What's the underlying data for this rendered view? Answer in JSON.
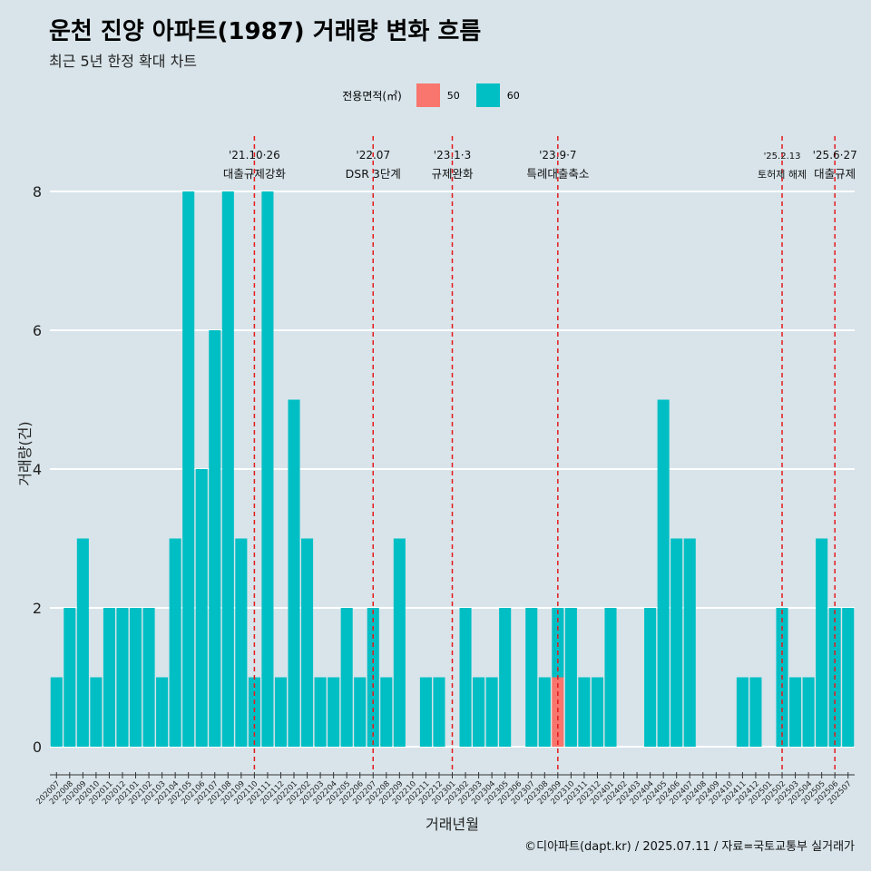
{
  "title": "운천 진양 아파트(1987) 거래량 변화 흐름",
  "subtitle": "최근 5년 한정 확대 차트",
  "footer": "©디아파트(dapt.kr) / 2025.07.11 / 자료=국토교통부 실거래가",
  "legend": {
    "title": "전용면적(㎡)",
    "items": [
      {
        "label": "50",
        "color": "#f8766d"
      },
      {
        "label": "60",
        "color": "#00bfc4"
      }
    ]
  },
  "chart_data": {
    "type": "bar",
    "stacked": true,
    "xlabel": "거래년월",
    "ylabel": "거래량(건)",
    "ylim": [
      0,
      8.6
    ],
    "yticks": [
      0,
      2,
      4,
      6,
      8
    ],
    "grid": true,
    "legend_position": "top",
    "categories": [
      "202007",
      "202008",
      "202009",
      "202010",
      "202011",
      "202012",
      "202101",
      "202102",
      "202103",
      "202104",
      "202105",
      "202106",
      "202107",
      "202108",
      "202109",
      "202110",
      "202111",
      "202112",
      "202201",
      "202202",
      "202203",
      "202204",
      "202205",
      "202206",
      "202207",
      "202208",
      "202209",
      "202210",
      "202211",
      "202212",
      "202301",
      "202302",
      "202303",
      "202304",
      "202305",
      "202306",
      "202307",
      "202308",
      "202309",
      "202310",
      "202311",
      "202312",
      "202401",
      "202402",
      "202403",
      "202404",
      "202405",
      "202406",
      "202407",
      "202408",
      "202409",
      "202410",
      "202411",
      "202412",
      "202501",
      "202502",
      "202503",
      "202504",
      "202505",
      "202506",
      "202507"
    ],
    "series": [
      {
        "name": "50",
        "color": "#f8766d",
        "values": [
          0,
          0,
          0,
          0,
          0,
          0,
          0,
          0,
          0,
          0,
          0,
          0,
          0,
          0,
          0,
          0,
          0,
          0,
          0,
          0,
          0,
          0,
          0,
          0,
          0,
          0,
          0,
          0,
          0,
          0,
          0,
          0,
          0,
          0,
          0,
          0,
          0,
          0,
          1,
          0,
          0,
          0,
          0,
          0,
          0,
          0,
          0,
          0,
          0,
          0,
          0,
          0,
          0,
          0,
          0,
          0,
          0,
          0,
          0,
          0,
          0
        ]
      },
      {
        "name": "60",
        "color": "#00bfc4",
        "values": [
          1,
          2,
          3,
          1,
          2,
          2,
          2,
          2,
          1,
          3,
          8,
          4,
          6,
          8,
          3,
          1,
          8,
          1,
          5,
          3,
          1,
          1,
          2,
          1,
          2,
          1,
          3,
          0,
          1,
          1,
          0,
          2,
          1,
          1,
          2,
          0,
          2,
          1,
          1,
          2,
          1,
          1,
          2,
          0,
          0,
          2,
          5,
          3,
          3,
          0,
          0,
          0,
          1,
          1,
          0,
          2,
          1,
          1,
          3,
          2,
          2
        ]
      }
    ],
    "annotations": [
      {
        "category": "202110",
        "date": "'21.10·26",
        "label": "대출규제강화"
      },
      {
        "category": "202207",
        "date": "'22.07",
        "label": "DSR 3단계"
      },
      {
        "category": "202301",
        "date": "'23.1·3",
        "label": "규제완화"
      },
      {
        "category": "202309",
        "date": "'23.9·7",
        "label": "특례대출축소"
      },
      {
        "category": "202502",
        "date": "'25.2.13",
        "label": "토허제 해제"
      },
      {
        "category": "202506",
        "date": "'25.6·27",
        "label": "대출규제"
      }
    ]
  }
}
